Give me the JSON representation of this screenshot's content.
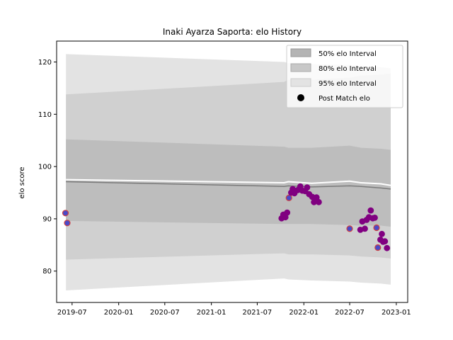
{
  "chart_data": {
    "type": "line",
    "title": "Inaki Ayarza Saporta: elo History",
    "xlabel": "",
    "ylabel": "elo score",
    "xlim": [
      "2019-05-01",
      "2023-02-15"
    ],
    "ylim": [
      74,
      124
    ],
    "x_ticks": [
      "2019-07",
      "2020-01",
      "2020-07",
      "2021-01",
      "2021-07",
      "2022-01",
      "2022-07",
      "2023-01"
    ],
    "y_ticks": [
      80,
      90,
      100,
      110,
      120
    ],
    "grid": false,
    "legend": {
      "placement": "top-right",
      "entries": [
        "50% elo Interval",
        "80% elo Interval",
        "95% elo Interval",
        "Post Match elo"
      ]
    },
    "colors": {
      "band_95": "#e3e3e3",
      "band_80": "#d0d0d0",
      "band_50": "#bdbdbd",
      "mean_line": "#7a7a7a",
      "upper_line": "#ffffff",
      "point_blue_face": "#4a4ac8",
      "point_purple": "#800080",
      "point_edge": "#d04040"
    },
    "interval_series": {
      "dates": [
        "2019-06-07",
        "2021-10-15",
        "2021-11-01",
        "2022-02-01",
        "2022-07-01",
        "2022-08-15",
        "2022-11-01",
        "2022-12-10"
      ],
      "mean": [
        97.1,
        96.2,
        96.3,
        96.1,
        96.3,
        96.2,
        95.9,
        95.7
      ],
      "upper": [
        97.5,
        96.9,
        97.1,
        96.8,
        97.2,
        96.9,
        96.7,
        96.4
      ],
      "p50_lo": [
        89.6,
        89.0,
        89.0,
        89.0,
        88.8,
        88.7,
        88.7,
        88.5
      ],
      "p50_hi": [
        105.2,
        103.8,
        103.6,
        103.6,
        104.0,
        103.6,
        103.4,
        103.2
      ],
      "p80_lo": [
        82.2,
        83.4,
        83.2,
        83.2,
        83.0,
        82.8,
        82.6,
        82.4
      ],
      "p80_hi": [
        113.8,
        116.2,
        116.6,
        116.6,
        117.0,
        117.4,
        117.6,
        117.8
      ],
      "p95_lo": [
        76.3,
        78.6,
        78.4,
        78.2,
        78.0,
        77.8,
        77.6,
        77.4
      ],
      "p95_hi": [
        121.5,
        120.0,
        119.8,
        119.6,
        119.4,
        119.2,
        119.0,
        118.8
      ]
    },
    "points": [
      {
        "date": "2019-06-05",
        "elo": 91.1,
        "style": "blue"
      },
      {
        "date": "2019-06-12",
        "elo": 89.2,
        "style": "blue"
      },
      {
        "date": "2021-10-05",
        "elo": 90.1,
        "style": "purple"
      },
      {
        "date": "2021-10-12",
        "elo": 90.8,
        "style": "purple"
      },
      {
        "date": "2021-10-20",
        "elo": 90.3,
        "style": "purple"
      },
      {
        "date": "2021-10-27",
        "elo": 91.2,
        "style": "purple"
      },
      {
        "date": "2021-11-03",
        "elo": 94.0,
        "style": "blue"
      },
      {
        "date": "2021-11-12",
        "elo": 95.0,
        "style": "purple"
      },
      {
        "date": "2021-11-18",
        "elo": 95.7,
        "style": "purple"
      },
      {
        "date": "2021-11-25",
        "elo": 94.9,
        "style": "purple"
      },
      {
        "date": "2021-12-08",
        "elo": 95.5,
        "style": "purple"
      },
      {
        "date": "2021-12-18",
        "elo": 96.2,
        "style": "purple"
      },
      {
        "date": "2021-12-26",
        "elo": 95.4,
        "style": "purple"
      },
      {
        "date": "2022-01-06",
        "elo": 95.3,
        "style": "purple"
      },
      {
        "date": "2022-01-14",
        "elo": 96.0,
        "style": "purple"
      },
      {
        "date": "2022-01-22",
        "elo": 94.7,
        "style": "purple"
      },
      {
        "date": "2022-02-03",
        "elo": 94.2,
        "style": "purple"
      },
      {
        "date": "2022-02-10",
        "elo": 93.2,
        "style": "purple"
      },
      {
        "date": "2022-02-20",
        "elo": 94.1,
        "style": "purple"
      },
      {
        "date": "2022-03-01",
        "elo": 93.2,
        "style": "purple"
      },
      {
        "date": "2022-07-01",
        "elo": 88.1,
        "style": "blue"
      },
      {
        "date": "2022-08-12",
        "elo": 87.9,
        "style": "purple"
      },
      {
        "date": "2022-08-20",
        "elo": 89.5,
        "style": "purple"
      },
      {
        "date": "2022-08-30",
        "elo": 88.1,
        "style": "purple"
      },
      {
        "date": "2022-09-06",
        "elo": 89.8,
        "style": "purple"
      },
      {
        "date": "2022-09-15",
        "elo": 90.3,
        "style": "purple"
      },
      {
        "date": "2022-09-22",
        "elo": 91.6,
        "style": "purple"
      },
      {
        "date": "2022-09-30",
        "elo": 90.1,
        "style": "purple"
      },
      {
        "date": "2022-10-08",
        "elo": 90.2,
        "style": "purple"
      },
      {
        "date": "2022-10-15",
        "elo": 88.3,
        "style": "blue"
      },
      {
        "date": "2022-10-20",
        "elo": 84.5,
        "style": "blue"
      },
      {
        "date": "2022-10-30",
        "elo": 86.0,
        "style": "purple"
      },
      {
        "date": "2022-11-05",
        "elo": 87.1,
        "style": "purple"
      },
      {
        "date": "2022-11-10",
        "elo": 85.6,
        "style": "purple"
      },
      {
        "date": "2022-11-17",
        "elo": 85.7,
        "style": "purple"
      },
      {
        "date": "2022-11-25",
        "elo": 84.4,
        "style": "purple"
      }
    ]
  }
}
